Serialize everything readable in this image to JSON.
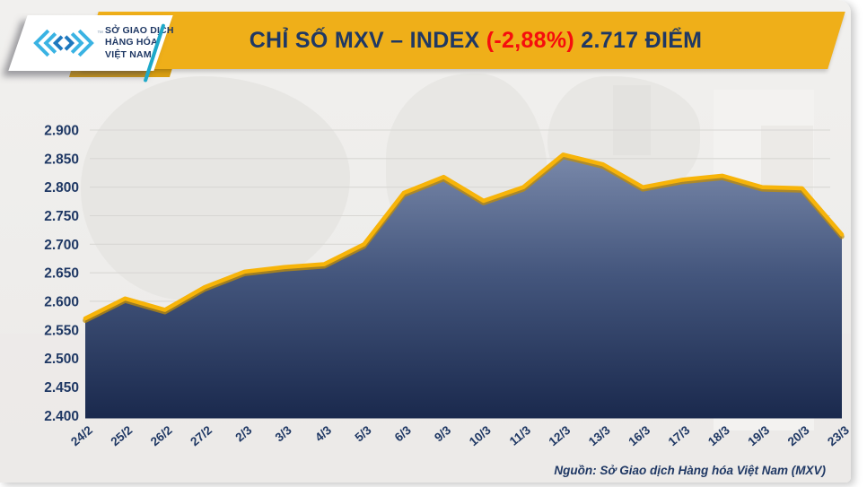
{
  "header": {
    "logo": {
      "line1": "SỞ GIAO DỊCH",
      "line2": "HÀNG HÓA",
      "line3": "VIỆT NAM",
      "trademark": "™"
    },
    "title": {
      "main": "CHỈ SỐ MXV – INDEX ",
      "change": "(-2,88%)",
      "points": " 2.717 ĐIỂM"
    }
  },
  "footer": {
    "source": "Nguồn: Sở Giao dịch Hàng hóa Việt Nam (MXV)"
  },
  "colors": {
    "banner_yellow": "#efaf19",
    "banner_under_gold": "#d89e10",
    "navy": "#1f3864",
    "red": "#f60d0d",
    "line_gold": "#f7b409",
    "line_gold_shadow": "#c28e06",
    "area_top": "#8493b3",
    "area_mid": "#44567d",
    "area_bottom": "#1a294d",
    "grid": "#d8d7d4",
    "slide_bg": "#efeeec",
    "logo_blue_light": "#3ab3e3",
    "logo_blue_dark": "#1e78be",
    "teal_slash": "#1ea9c9"
  },
  "chart_data": {
    "type": "area",
    "title": "CHỈ SỐ MXV – INDEX (-2,88%) 2.717 ĐIỂM",
    "xlabel": "",
    "ylabel": "",
    "categories": [
      "24/2",
      "25/2",
      "26/2",
      "27/2",
      "2/3",
      "3/3",
      "4/3",
      "5/3",
      "6/3",
      "9/3",
      "10/3",
      "11/3",
      "12/3",
      "13/3",
      "16/3",
      "17/3",
      "18/3",
      "19/3",
      "20/3",
      "23/3"
    ],
    "values": [
      2570,
      2605,
      2585,
      2625,
      2652,
      2660,
      2665,
      2700,
      2790,
      2818,
      2776,
      2800,
      2857,
      2840,
      2800,
      2813,
      2820,
      2800,
      2798,
      2717
    ],
    "last_value_label": "2.717",
    "change_percent_label": "-2,88%",
    "y_ticks": [
      2900,
      2850,
      2800,
      2750,
      2700,
      2650,
      2600,
      2550,
      2500,
      2450,
      2400
    ],
    "y_tick_labels": [
      "2.900",
      "2.850",
      "2.800",
      "2.750",
      "2.700",
      "2.650",
      "2.600",
      "2.550",
      "2.500",
      "2.450",
      "2.400"
    ],
    "ylim": [
      2400,
      2900
    ],
    "grid": true,
    "legend": false
  }
}
